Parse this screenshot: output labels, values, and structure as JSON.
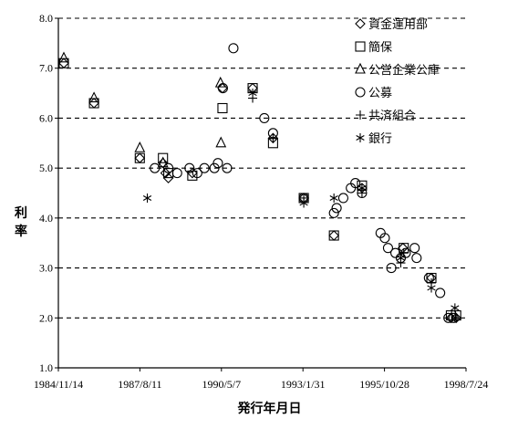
{
  "chart_data": {
    "type": "scatter",
    "title": "",
    "xlabel": "発行年月日",
    "ylabel": "利率",
    "x_ticks": [
      "1984/11/14",
      "1987/8/11",
      "1990/5/7",
      "1993/1/31",
      "1995/10/28",
      "1998/7/24"
    ],
    "xlim": [
      "1984/11/14",
      "1998/7/24"
    ],
    "ylim": [
      1.0,
      8.0
    ],
    "y_ticks": [
      "1.0",
      "2.0",
      "3.0",
      "4.0",
      "5.0",
      "6.0",
      "7.0",
      "8.0"
    ],
    "grid": "horizontal dashed",
    "legend_position": "top-right",
    "series": [
      {
        "name": "資金運用部",
        "marker": "diamond",
        "points": [
          [
            "1985/01/20",
            7.1
          ],
          [
            "1986/01/25",
            6.3
          ],
          [
            "1987/08/10",
            5.2
          ],
          [
            "1988/05/20",
            5.1
          ],
          [
            "1988/06/20",
            4.9
          ],
          [
            "1988/07/25",
            4.8
          ],
          [
            "1989/05/15",
            4.9
          ],
          [
            "1990/05/20",
            6.6
          ],
          [
            "1991/05/25",
            6.6
          ],
          [
            "1992/01/30",
            5.6
          ],
          [
            "1993/02/10",
            4.4
          ],
          [
            "1994/02/15",
            3.65
          ],
          [
            "1995/01/25",
            4.6
          ],
          [
            "1996/06/10",
            3.4
          ],
          [
            "1997/05/25",
            2.8
          ],
          [
            "1998/01/20",
            2.0
          ],
          [
            "1998/03/25",
            2.0
          ]
        ]
      },
      {
        "name": "簡保",
        "marker": "square",
        "points": [
          [
            "1985/01/20",
            7.1
          ],
          [
            "1986/01/25",
            6.3
          ],
          [
            "1987/08/10",
            5.2
          ],
          [
            "1988/05/20",
            5.2
          ],
          [
            "1988/07/25",
            4.9
          ],
          [
            "1989/05/15",
            4.85
          ],
          [
            "1990/05/20",
            6.2
          ],
          [
            "1991/05/25",
            6.6
          ],
          [
            "1992/01/30",
            5.5
          ],
          [
            "1993/02/10",
            4.4
          ],
          [
            "1994/02/15",
            3.65
          ],
          [
            "1995/01/25",
            4.65
          ],
          [
            "1996/06/20",
            3.4
          ],
          [
            "1997/05/25",
            2.8
          ],
          [
            "1998/01/20",
            2.05
          ],
          [
            "1998/03/25",
            2.05
          ]
        ]
      },
      {
        "name": "公営企業公庫",
        "marker": "triangle",
        "points": [
          [
            "1985/01/20",
            7.2
          ],
          [
            "1986/01/25",
            6.4
          ],
          [
            "1987/08/10",
            5.4
          ],
          [
            "1988/05/20",
            5.1
          ],
          [
            "1990/04/25",
            6.7
          ],
          [
            "1990/05/01",
            5.5
          ]
        ]
      },
      {
        "name": "公募",
        "marker": "circle",
        "points": [
          [
            "1988/02/10",
            5.0
          ],
          [
            "1988/07/25",
            5.0
          ],
          [
            "1988/11/10",
            4.9
          ],
          [
            "1989/04/10",
            5.0
          ],
          [
            "1989/07/15",
            4.9
          ],
          [
            "1989/10/10",
            5.0
          ],
          [
            "1990/02/10",
            5.0
          ],
          [
            "1990/03/25",
            5.1
          ],
          [
            "1990/05/25",
            6.6
          ],
          [
            "1990/07/15",
            5.0
          ],
          [
            "1990/10/01",
            7.4
          ],
          [
            "1991/10/15",
            6.0
          ],
          [
            "1992/01/30",
            5.7
          ],
          [
            "1993/02/10",
            4.4
          ],
          [
            "1994/02/15",
            4.1
          ],
          [
            "1994/03/20",
            4.2
          ],
          [
            "1994/06/10",
            4.4
          ],
          [
            "1994/09/10",
            4.6
          ],
          [
            "1994/11/05",
            4.7
          ],
          [
            "1995/01/25",
            4.5
          ],
          [
            "1995/09/10",
            3.7
          ],
          [
            "1995/11/01",
            3.6
          ],
          [
            "1995/12/10",
            3.4
          ],
          [
            "1996/01/20",
            3.0
          ],
          [
            "1996/03/10",
            3.3
          ],
          [
            "1996/05/15",
            3.2
          ],
          [
            "1996/07/15",
            3.3
          ],
          [
            "1996/11/01",
            3.4
          ],
          [
            "1996/11/25",
            3.2
          ],
          [
            "1997/04/25",
            2.8
          ],
          [
            "1997/09/10",
            2.5
          ],
          [
            "1997/12/20",
            2.0
          ],
          [
            "1998/02/20",
            2.0
          ]
        ]
      },
      {
        "name": "共済組合",
        "marker": "plus",
        "points": [
          [
            "1991/05/25",
            6.4
          ],
          [
            "1992/01/30",
            5.6
          ],
          [
            "1993/02/10",
            4.4
          ],
          [
            "1995/01/25",
            4.5
          ],
          [
            "1996/05/15",
            3.1
          ],
          [
            "1996/06/20",
            3.3
          ],
          [
            "1997/05/25",
            2.7
          ],
          [
            "1998/03/25",
            2.0
          ]
        ]
      },
      {
        "name": "銀行",
        "marker": "asterisk",
        "points": [
          [
            "1987/11/10",
            4.4
          ],
          [
            "1991/05/25",
            6.5
          ],
          [
            "1993/02/10",
            4.3
          ],
          [
            "1994/02/15",
            4.4
          ],
          [
            "1995/01/25",
            4.6
          ],
          [
            "1996/05/15",
            3.2
          ],
          [
            "1997/05/25",
            2.6
          ],
          [
            "1998/03/10",
            2.2
          ]
        ]
      }
    ]
  }
}
